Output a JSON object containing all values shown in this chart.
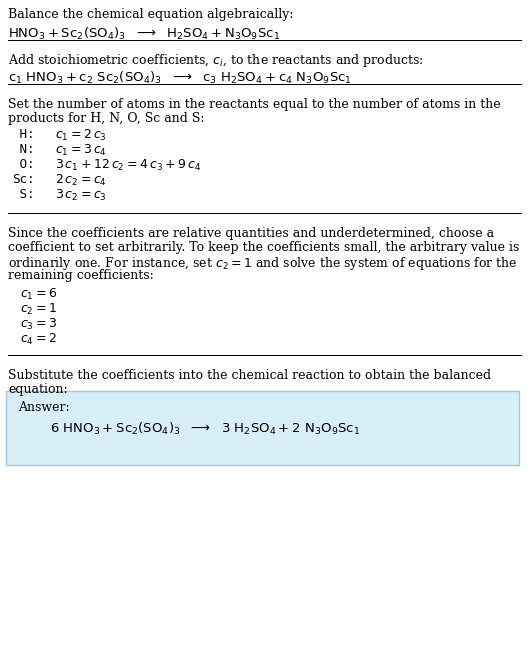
{
  "bg_color": "#ffffff",
  "box_facecolor": "#d8eef8",
  "box_edgecolor": "#a0c8e0",
  "text_color": "#000000",
  "figsize": [
    5.29,
    6.47
  ],
  "dpi": 100,
  "base_fs": 9.0,
  "eq_fs": 9.5,
  "mono_fs": 9.0,
  "section1_title": "Balance the chemical equation algebraically:",
  "section1_eq": "$\\mathrm{HNO_3 + Sc_2(SO_4)_3 \\ \\ \\longrightarrow \\ \\ H_2SO_4 + N_3O_9Sc_1}$",
  "section2_title": "Add stoichiometric coefficients, $c_i$, to the reactants and products:",
  "section2_eq": "$\\mathrm{c_1 \\ HNO_3 + c_2 \\ Sc_2(SO_4)_3 \\ \\ \\longrightarrow \\ \\ c_3 \\ H_2SO_4 + c_4 \\ N_3O_9Sc_1}$",
  "section3_title1": "Set the number of atoms in the reactants equal to the number of atoms in the",
  "section3_title2": "products for H, N, O, Sc and S:",
  "atom_labels": [
    " H:",
    " N:",
    " O:",
    "Sc:",
    " S:"
  ],
  "atom_eqs": [
    "$c_1 = 2\\,c_3$",
    "$c_1 = 3\\,c_4$",
    "$3\\,c_1 + 12\\,c_2 = 4\\,c_3 + 9\\,c_4$",
    "$2\\,c_2 = c_4$",
    "$3\\,c_2 = c_3$"
  ],
  "section4_lines": [
    "Since the coefficients are relative quantities and underdetermined, choose a",
    "coefficient to set arbitrarily. To keep the coefficients small, the arbitrary value is",
    "ordinarily one. For instance, set $c_2 = 1$ and solve the system of equations for the",
    "remaining coefficients:"
  ],
  "coeff_lines": [
    "$c_1 = 6$",
    "$c_2 = 1$",
    "$c_3 = 3$",
    "$c_4 = 2$"
  ],
  "section5_title1": "Substitute the coefficients into the chemical reaction to obtain the balanced",
  "section5_title2": "equation:",
  "answer_label": "Answer:",
  "answer_eq": "$\\mathrm{6\\ HNO_3 + Sc_2(SO_4)_3 \\ \\ \\longrightarrow \\ \\ 3\\ H_2SO_4 + 2\\ N_3O_9Sc_1}$"
}
